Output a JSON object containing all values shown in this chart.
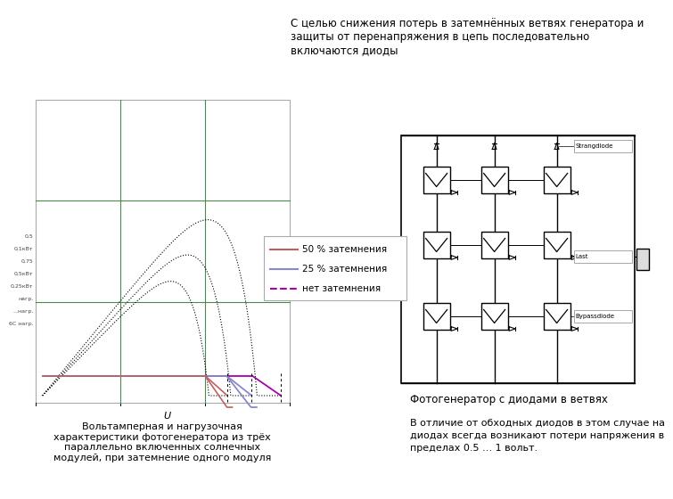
{
  "title_text": "С целью снижения потерь в затемнённых ветвях генератора и\nзащиты от перенапряжения в цепь последовательно\nвключаются диоды",
  "caption_left": "Вольтамперная и нагрузочная\nхарактеристики фотогенератора из трёх\nпараллельно включенных солнечных\nмодулей, при затемнение одного модуля",
  "caption_right": "Фотогенератор с диодами в ветвях",
  "caption_bottom": "В отличие от обходных диодов в этом случае на\nдиодах всегда возникают потери напряжения в\nпределах 0.5 … 1 вольт.",
  "legend_50": "50 % затемнения",
  "legend_25": "25 % затемнения",
  "legend_0": "нет затемнения",
  "color_50": "#c06060",
  "color_25": "#8888cc",
  "color_0": "#aa00aa",
  "grid_color": "#4a8a4a",
  "bg_color": "#ffffff"
}
